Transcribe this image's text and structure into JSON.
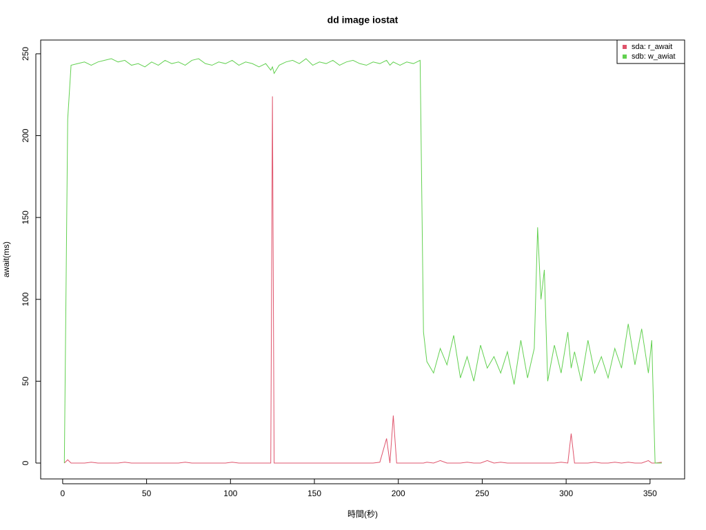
{
  "chart_data": {
    "type": "line",
    "title": "dd image iostat",
    "x_label": "時間(秒)",
    "y_label": "await(ms)",
    "x": [
      1,
      3,
      5,
      9,
      13,
      17,
      21,
      25,
      29,
      33,
      37,
      41,
      45,
      49,
      53,
      57,
      61,
      65,
      69,
      73,
      77,
      81,
      85,
      89,
      93,
      97,
      101,
      105,
      109,
      113,
      117,
      121,
      124,
      125,
      126,
      129,
      133,
      137,
      141,
      145,
      149,
      153,
      157,
      161,
      165,
      169,
      173,
      177,
      181,
      185,
      189,
      193,
      195,
      197,
      199,
      201,
      205,
      209,
      213,
      215,
      217,
      221,
      225,
      229,
      233,
      237,
      241,
      245,
      249,
      253,
      257,
      261,
      265,
      269,
      273,
      277,
      281,
      283,
      285,
      287,
      289,
      293,
      297,
      301,
      303,
      305,
      309,
      313,
      317,
      321,
      325,
      329,
      333,
      337,
      341,
      345,
      349,
      351,
      353,
      357
    ],
    "series": [
      {
        "name": "sda: r_await",
        "color": "#DF536B",
        "values": [
          0,
          2,
          0,
          0,
          0,
          0.5,
          0,
          0,
          0,
          0,
          0.5,
          0,
          0,
          0,
          0,
          0,
          0,
          0,
          0,
          0.5,
          0,
          0,
          0,
          0,
          0,
          0,
          0.5,
          0,
          0,
          0,
          0,
          0,
          0,
          224,
          0,
          0,
          0,
          0,
          0,
          0,
          0,
          0,
          0,
          0,
          0,
          0,
          0,
          0,
          0,
          0,
          0.5,
          15,
          0,
          29,
          0,
          0,
          0,
          0,
          0,
          0,
          0.5,
          0,
          1.5,
          0,
          0,
          0,
          0.5,
          0,
          0,
          1.5,
          0,
          0.5,
          0,
          0,
          0,
          0,
          0,
          0,
          0,
          0,
          0,
          0,
          0.5,
          0,
          18,
          0,
          0,
          0,
          0.5,
          0,
          0,
          0.5,
          0,
          0.5,
          0,
          0,
          1.5,
          0,
          0,
          0.5
        ]
      },
      {
        "name": "sdb: w_awiat",
        "color": "#61D04F",
        "values": [
          0,
          210,
          243,
          244,
          245,
          243,
          245,
          246,
          247,
          245,
          246,
          243,
          244,
          242,
          245,
          243,
          246,
          244,
          245,
          243,
          246,
          247,
          244,
          243,
          245,
          244,
          246,
          243,
          245,
          244,
          242,
          244,
          240,
          242,
          238,
          243,
          245,
          246,
          244,
          247,
          243,
          245,
          244,
          246,
          243,
          245,
          246,
          244,
          243,
          245,
          244,
          246,
          243,
          245,
          244,
          243,
          245,
          244,
          246,
          80,
          62,
          55,
          70,
          60,
          78,
          52,
          65,
          50,
          72,
          58,
          65,
          55,
          68,
          48,
          75,
          52,
          70,
          144,
          100,
          118,
          50,
          72,
          55,
          80,
          58,
          68,
          50,
          75,
          55,
          65,
          52,
          70,
          58,
          85,
          60,
          82,
          55,
          75,
          0,
          0
        ]
      }
    ],
    "xlim": [
      -13.1,
      370.6
    ],
    "ylim": [
      -9.7,
      258.4
    ],
    "xticks": [
      0,
      50,
      100,
      150,
      200,
      250,
      300,
      350
    ],
    "yticks": [
      0,
      50,
      100,
      150,
      200,
      250
    ],
    "legend": "top-right"
  }
}
